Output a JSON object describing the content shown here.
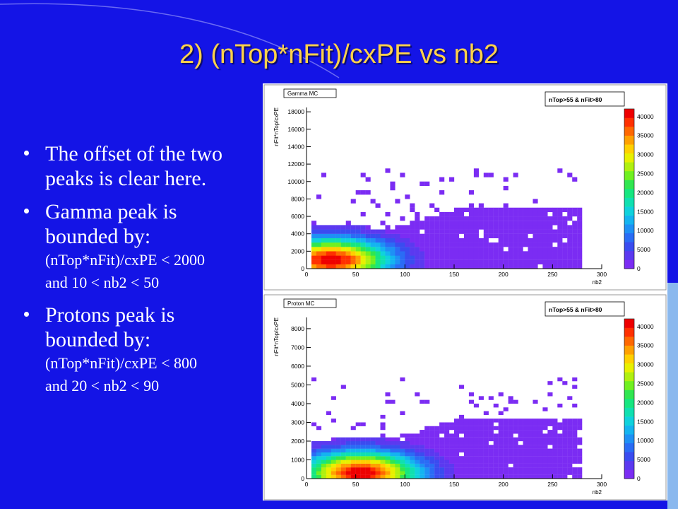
{
  "slide": {
    "title": "2) (nTop*nFit)/cxPE vs nb2",
    "bullets": [
      {
        "main": "The offset of the two peaks is clear here."
      },
      {
        "main": "Gamma peak is bounded by:",
        "sub": [
          "(nTop*nFit)/cxPE < 2000",
          "and 10 < nb2 < 50"
        ]
      },
      {
        "main": "Protons peak is bounded by:",
        "sub": [
          "(nTop*nFit)/cxPE < 800",
          "and 20 < nb2 < 90"
        ]
      }
    ]
  },
  "colors": {
    "background": "#1414e6",
    "title": "#ffd24a",
    "text": "#ffffff",
    "panel": "#ffffff"
  },
  "chart_data": [
    {
      "type": "heatmap",
      "title": "Gamma MC",
      "stats_label": "nTop>55 & nFit>80",
      "xlabel": "nb2",
      "ylabel": "nFit*nTop/cxPE",
      "xlim": [
        0,
        300
      ],
      "ylim": [
        0,
        18500
      ],
      "xticks": [
        0,
        50,
        100,
        150,
        200,
        250,
        300
      ],
      "yticks": [
        0,
        2000,
        4000,
        6000,
        8000,
        10000,
        12000,
        14000,
        16000,
        18000
      ],
      "colorbar": {
        "range": [
          0,
          42000
        ],
        "ticks": [
          0,
          5000,
          10000,
          15000,
          20000,
          25000,
          30000,
          35000,
          40000
        ]
      },
      "bins": {
        "nx": 56,
        "x_width": 5,
        "ny": 37,
        "y_width": 500
      },
      "peak": {
        "x": 25,
        "y": 1000
      },
      "x_extent": [
        5,
        280
      ]
    },
    {
      "type": "heatmap",
      "title": "Proton MC",
      "stats_label": "nTop>55 & nFit>80",
      "xlabel": "nb2",
      "ylabel": "nFit*nTop/cxPE",
      "xlim": [
        0,
        300
      ],
      "ylim": [
        0,
        8600
      ],
      "xticks": [
        0,
        50,
        100,
        150,
        200,
        250,
        300
      ],
      "yticks": [
        0,
        1000,
        2000,
        3000,
        4000,
        5000,
        6000,
        7000,
        8000
      ],
      "colorbar": {
        "range": [
          0,
          42000
        ],
        "ticks": [
          0,
          5000,
          10000,
          15000,
          20000,
          25000,
          30000,
          35000,
          40000
        ]
      },
      "bins": {
        "nx": 56,
        "x_width": 5,
        "ny": 43,
        "y_width": 200
      },
      "peak": {
        "x": 55,
        "y": 300
      },
      "x_extent": [
        5,
        280
      ]
    }
  ]
}
